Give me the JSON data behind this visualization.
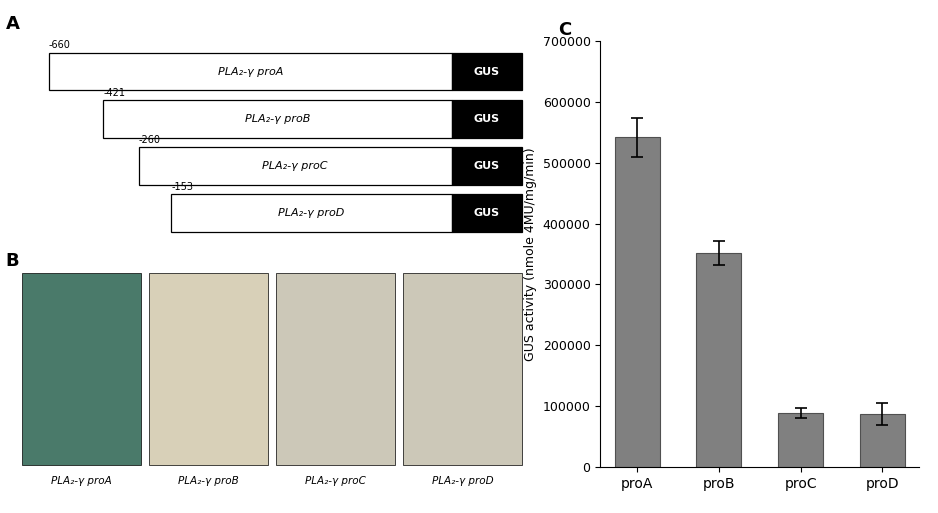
{
  "bar_categories": [
    "proA",
    "proB",
    "proC",
    "proD"
  ],
  "bar_values": [
    542000,
    352000,
    88000,
    87000
  ],
  "bar_errors": [
    32000,
    20000,
    8000,
    18000
  ],
  "bar_color": "#808080",
  "bar_edgecolor": "#505050",
  "ylabel": "GUS activity (nmole 4MU/mg/min)",
  "ylim": [
    0,
    700000
  ],
  "yticks": [
    0,
    100000,
    200000,
    300000,
    400000,
    500000,
    600000,
    700000
  ],
  "label_C": "C",
  "label_A": "A",
  "label_B": "B",
  "panel_A_constructs": [
    {
      "label": "-660",
      "name": "PLA₂-γ proA",
      "indent": 0
    },
    {
      "label": "-421",
      "name": "PLA₂-γ proB",
      "indent": 1
    },
    {
      "label": "-260",
      "name": "PLA₂-γ proC",
      "indent": 2
    },
    {
      "label": "-153",
      "name": "PLA₂-γ proD",
      "indent": 3
    }
  ],
  "panel_B_labels": [
    "PLA₂-γ proA",
    "PLA₂-γ proB",
    "PLA₂-γ proC",
    "PLA₂-γ proD"
  ],
  "photo_colors": [
    "#4a7a6a",
    "#d8d0b8",
    "#ccc8b8",
    "#ccc8b8"
  ],
  "background_color": "#ffffff",
  "figure_width": 9.38,
  "figure_height": 5.13,
  "dpi": 100
}
